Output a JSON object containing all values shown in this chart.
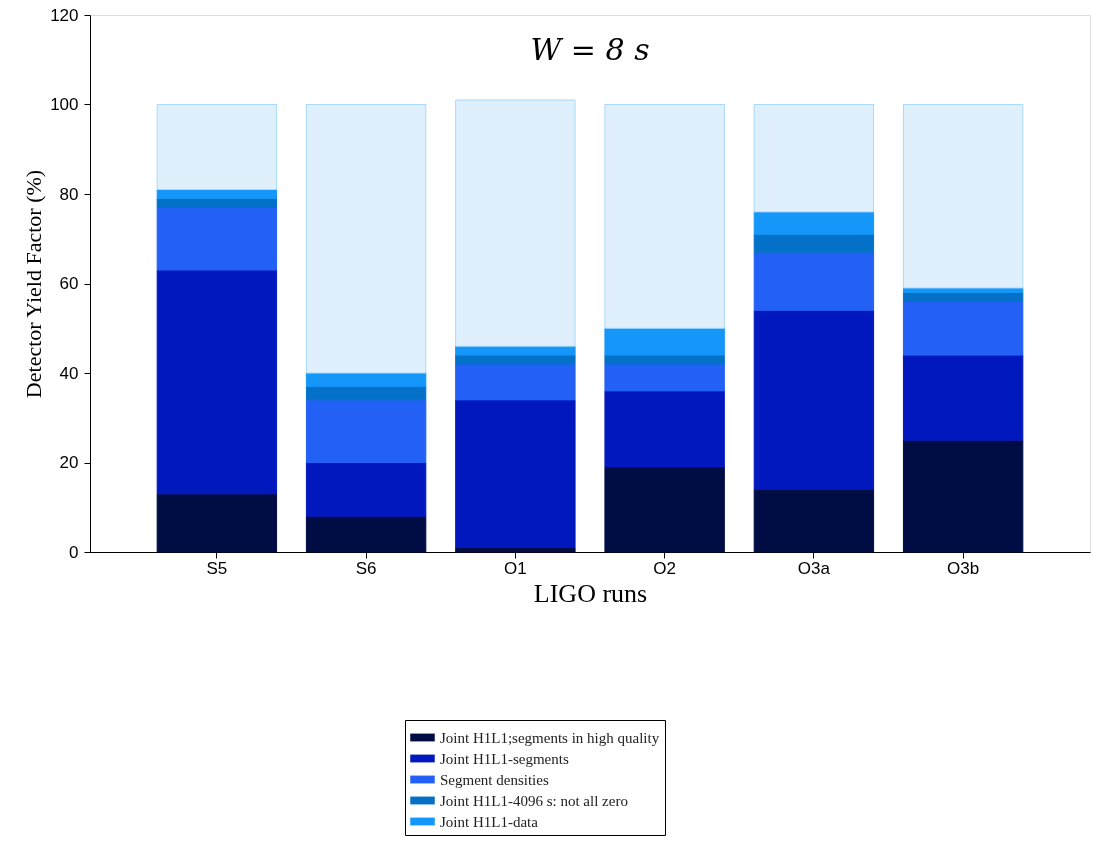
{
  "chart_data": {
    "type": "bar",
    "title": "W = 8 s",
    "xlabel": "LIGO runs",
    "ylabel": "Detector Yield Factor (%)",
    "categories": [
      "S5",
      "S6",
      "O1",
      "O2",
      "O3a",
      "O3b"
    ],
    "stacked": true,
    "series": [
      {
        "name": "Joint H1L1;segments in high quality",
        "color": "#000c44",
        "values": [
          13,
          8,
          1,
          19,
          14,
          25
        ]
      },
      {
        "name": "Joint H1L1-segments",
        "color": "#0218bf",
        "values": [
          50,
          12,
          33,
          17,
          40,
          19
        ]
      },
      {
        "name": "Segment densities",
        "color": "#2360f5",
        "values": [
          14,
          14,
          8,
          6,
          13,
          12
        ]
      },
      {
        "name": "Joint H1L1-4096 s: not all zero",
        "color": "#0371c8",
        "values": [
          2,
          3,
          2,
          2,
          4,
          2
        ]
      },
      {
        "name": "Joint H1L1-data",
        "color": "#1596f9",
        "values": [
          2,
          3,
          2,
          6,
          5,
          1
        ]
      },
      {
        "color": "#dff0fc",
        "values": [
          19,
          60,
          55,
          50,
          24,
          41
        ]
      }
    ],
    "ylim": [
      0,
      120
    ],
    "yticks": [
      0,
      20,
      40,
      60,
      80,
      100,
      120
    ],
    "legend": "bottom",
    "grid": false
  }
}
